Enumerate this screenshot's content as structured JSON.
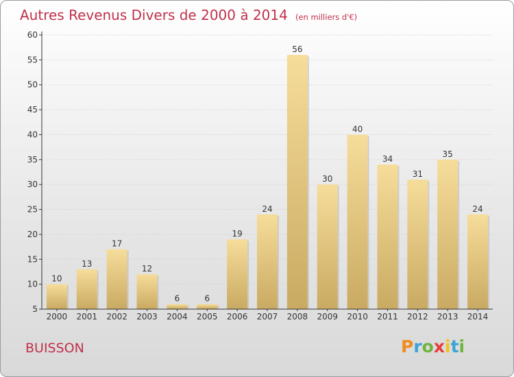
{
  "header": {
    "title": "Autres Revenus Divers de 2000 à 2014",
    "subtitle": "(en milliers d'€)"
  },
  "footer": {
    "commune": "BUISSON",
    "logo": "Proxiti",
    "logo_colors": [
      "#f08c1e",
      "#3aa3d8",
      "#6fb43f",
      "#e83c3c",
      "#f5c21a",
      "#3aa3d8",
      "#6fb43f"
    ]
  },
  "colors": {
    "title": "#c0304a",
    "bar_light": "#f6dd9a",
    "bar_dark": "#c9aa62"
  },
  "chart_data": {
    "type": "bar",
    "title": "Autres Revenus Divers de 2000 à 2014",
    "subtitle": "(en milliers d'€)",
    "categories": [
      "2000",
      "2001",
      "2002",
      "2003",
      "2004",
      "2005",
      "2006",
      "2007",
      "2008",
      "2009",
      "2010",
      "2011",
      "2012",
      "2013",
      "2014"
    ],
    "values": [
      10,
      13,
      17,
      12,
      6,
      6,
      19,
      24,
      56,
      30,
      40,
      34,
      31,
      35,
      24
    ],
    "ylim": [
      5,
      60
    ],
    "yticks": [
      5,
      10,
      15,
      20,
      25,
      30,
      35,
      40,
      45,
      50,
      55,
      60
    ],
    "grid": true,
    "data_labels": true
  }
}
